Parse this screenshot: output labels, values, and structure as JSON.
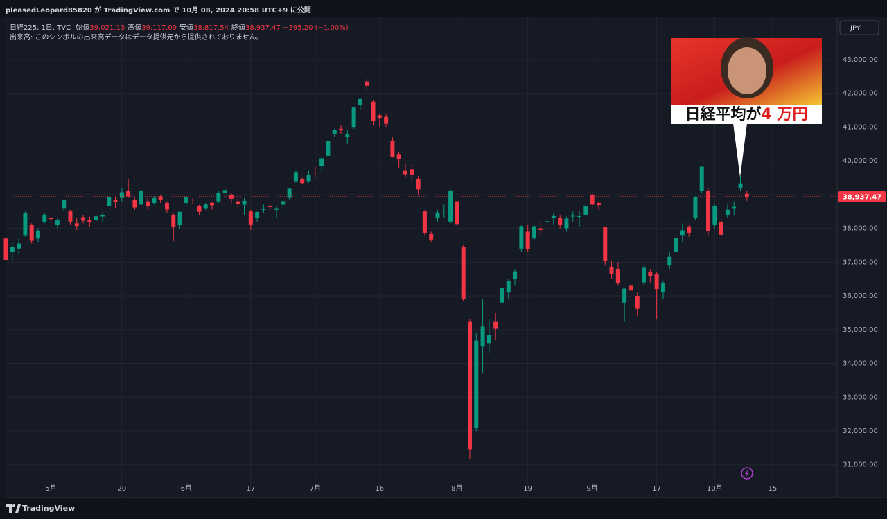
{
  "header": {
    "author_line": "pleasedLeopard85820 が TradingView.com で 10月 08, 2024 20:58 UTC+9 に公開",
    "symbol": "日経225, 1日, TVC",
    "ohlc": [
      {
        "label": "始値",
        "value": "39,021.13"
      },
      {
        "label": "高値",
        "value": "39,117.09"
      },
      {
        "label": "安値",
        "value": "38,817.54"
      },
      {
        "label": "終値",
        "value": "38,937.47"
      }
    ],
    "change": "−395.20 (−1.00%)",
    "volume_note": "出来高: このシンボルの出来高データはデータ提供元から提供されておりません。",
    "currency": "JPY"
  },
  "callout": {
    "text": "日経平均が",
    "highlight": "4 万円"
  },
  "footer": {
    "brand": "TradingView"
  },
  "chart_data": {
    "type": "candlestick",
    "up_color": "#089981",
    "down_color": "#f23645",
    "grid": true,
    "last_price_label": "38,937.47",
    "ylim": [
      30030,
      44250
    ],
    "yticks": [
      {
        "value": 31000,
        "label": "31,000.00"
      },
      {
        "value": 32000,
        "label": "32,000.00"
      },
      {
        "value": 33000,
        "label": "33,000.00"
      },
      {
        "value": 34000,
        "label": "34,000.00"
      },
      {
        "value": 35000,
        "label": "35,000.00"
      },
      {
        "value": 36000,
        "label": "36,000.00"
      },
      {
        "value": 37000,
        "label": "37,000.00"
      },
      {
        "value": 38000,
        "label": "38,000.00"
      },
      {
        "value": 39000,
        "label": "39,000.00"
      },
      {
        "value": 40000,
        "label": "40,000.00"
      },
      {
        "value": 41000,
        "label": "41,000.00"
      },
      {
        "value": 42000,
        "label": "42,000.00"
      },
      {
        "value": 43000,
        "label": "43,000.00"
      }
    ],
    "categories": [
      null,
      null,
      null,
      null,
      null,
      null,
      null,
      "5月",
      null,
      null,
      null,
      null,
      null,
      null,
      null,
      null,
      null,
      null,
      "20",
      null,
      null,
      null,
      null,
      null,
      null,
      null,
      null,
      null,
      "6月",
      null,
      null,
      null,
      null,
      null,
      null,
      null,
      null,
      null,
      "17",
      null,
      null,
      null,
      null,
      null,
      null,
      null,
      null,
      null,
      "7月",
      null,
      null,
      null,
      null,
      null,
      null,
      null,
      null,
      null,
      "16",
      null,
      null,
      null,
      null,
      null,
      null,
      null,
      null,
      null,
      null,
      null,
      "8月",
      null,
      null,
      null,
      null,
      null,
      null,
      null,
      null,
      null,
      null,
      "19",
      null,
      null,
      null,
      null,
      null,
      null,
      null,
      null,
      null,
      "9月",
      null,
      null,
      null,
      null,
      null,
      null,
      null,
      null,
      null,
      "17",
      null,
      null,
      null,
      null,
      null,
      null,
      null,
      null,
      "10月",
      null,
      null,
      null,
      null,
      null,
      null,
      null,
      null,
      "15"
    ],
    "open": [
      37700,
      37300,
      37400,
      37800,
      38100,
      37700,
      38200,
      38300,
      38100,
      38600,
      38500,
      38150,
      38330,
      38250,
      38250,
      38350,
      38650,
      38850,
      38900,
      39100,
      38850,
      38700,
      38800,
      38750,
      38950,
      38750,
      38400,
      38100,
      38750,
      38850,
      38650,
      38600,
      38750,
      38800,
      39050,
      39000,
      38800,
      38700,
      38500,
      38300,
      38550,
      38650,
      38550,
      38700,
      38900,
      39400,
      39450,
      39400,
      39650,
      39850,
      40150,
      40800,
      40950,
      40700,
      41000,
      41650,
      42350,
      41750,
      41350,
      41300,
      40600,
      40200,
      39700,
      39750,
      39450,
      38500,
      37850,
      38300,
      38500,
      38200,
      38800,
      37450,
      35250,
      32100,
      34500,
      34600,
      35250,
      35800,
      36100,
      36500,
      37400,
      37900,
      37700,
      38000,
      38200,
      38300,
      38300,
      38000,
      38350,
      38350,
      38400,
      39000,
      38750,
      38050,
      36850,
      36800,
      35800,
      36300,
      36000,
      36400,
      36700,
      36650,
      36100,
      36900,
      37300,
      37800,
      38050,
      38300,
      39100,
      39100,
      38100,
      38200,
      38400,
      38600,
      39200,
      39021.13,
      null,
      null,
      null,
      null
    ],
    "high": [
      37750,
      37600,
      37700,
      38500,
      38150,
      38000,
      38450,
      38350,
      38300,
      38860,
      38550,
      38300,
      38400,
      38350,
      38400,
      38480,
      38950,
      38950,
      39200,
      39450,
      38900,
      39150,
      38900,
      38950,
      39000,
      38800,
      38450,
      38500,
      38950,
      38900,
      38700,
      38750,
      38800,
      39100,
      39200,
      39050,
      38900,
      38900,
      38550,
      38500,
      38700,
      38700,
      38650,
      38850,
      39200,
      39700,
      39500,
      39700,
      39850,
      40100,
      40600,
      40950,
      41050,
      40900,
      41600,
      41850,
      42430,
      41800,
      41400,
      41400,
      40700,
      40250,
      39900,
      39900,
      39550,
      38540,
      37900,
      38550,
      38700,
      39150,
      38850,
      37500,
      35300,
      34900,
      35900,
      35300,
      35500,
      36300,
      36500,
      36800,
      38100,
      38100,
      38100,
      38200,
      38300,
      38450,
      38400,
      38350,
      38500,
      38500,
      38750,
      39100,
      38800,
      38050,
      37050,
      37000,
      36250,
      36400,
      36100,
      36900,
      36800,
      36700,
      36450,
      37300,
      37800,
      38150,
      38100,
      38950,
      39830,
      39200,
      38700,
      38300,
      38700,
      38800,
      39550,
      39117.09,
      null,
      null,
      null,
      null
    ],
    "low": [
      36733,
      37050,
      37250,
      37750,
      37550,
      37600,
      38150,
      38080,
      38000,
      38500,
      38100,
      37950,
      38150,
      38050,
      38200,
      38200,
      38650,
      38600,
      38800,
      38900,
      38550,
      38700,
      38550,
      38700,
      38750,
      38450,
      37620,
      38000,
      38700,
      38700,
      38400,
      38550,
      38550,
      38750,
      38950,
      38750,
      38600,
      38400,
      37950,
      38200,
      38450,
      38500,
      38300,
      38550,
      38850,
      39350,
      39300,
      39350,
      39500,
      39700,
      40100,
      40700,
      40800,
      40500,
      40950,
      41500,
      42100,
      41050,
      41000,
      41000,
      40100,
      39800,
      39500,
      39400,
      39000,
      37800,
      37600,
      38200,
      38300,
      38150,
      38100,
      35850,
      31156,
      32000,
      33700,
      34300,
      34700,
      35750,
      35900,
      36300,
      37300,
      37300,
      37650,
      37800,
      38050,
      38100,
      38000,
      37900,
      38200,
      38050,
      38350,
      38600,
      38550,
      36900,
      36500,
      36300,
      35250,
      35950,
      35400,
      36300,
      36400,
      35300,
      35900,
      36800,
      37200,
      37600,
      37750,
      38250,
      39050,
      37800,
      38000,
      37650,
      38300,
      38400,
      39100,
      38817.54,
      null,
      null,
      null,
      null
    ],
    "close": [
      37068,
      37438,
      37552,
      38460,
      37628,
      37934,
      38405,
      38274,
      38236,
      38835,
      38202,
      38073,
      38229,
      38179,
      38356,
      38385,
      38920,
      38787,
      39069,
      38946,
      38617,
      39103,
      38646,
      38900,
      38855,
      38556,
      38054,
      38487,
      38923,
      38837,
      38490,
      38703,
      38683,
      39038,
      39134,
      38876,
      38720,
      38814,
      38102,
      38482,
      38570,
      38633,
      38596,
      38804,
      39173,
      39667,
      39341,
      39583,
      39631,
      40074,
      40580,
      40913,
      40912,
      40780,
      41580,
      41831,
      42224,
      41190,
      41275,
      41097,
      40126,
      40063,
      39599,
      39594,
      39154,
      37869,
      37667,
      38468,
      38525,
      39101,
      38126,
      35909,
      31458,
      34675,
      35089,
      34831,
      35025,
      36232,
      36442,
      36726,
      38062,
      37388,
      38062,
      37951,
      38211,
      38364,
      38110,
      38288,
      38371,
      38362,
      38647,
      38700,
      38686,
      37047,
      36657,
      36391,
      36215,
      36159,
      35619,
      36833,
      36581,
      36203,
      36380,
      37155,
      37723,
      37940,
      37870,
      38925,
      39829,
      37919,
      38651,
      37808,
      38552,
      38635,
      39332,
      38937.47,
      null,
      null,
      null,
      null
    ]
  }
}
